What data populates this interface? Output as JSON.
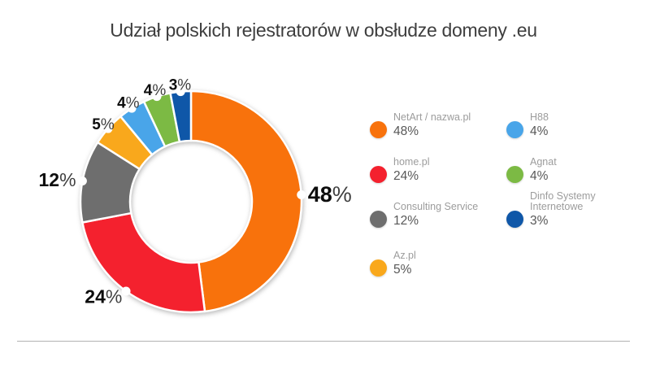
{
  "title": "Udział polskich rejestratorów w obsłudze domeny .eu",
  "chart_data": {
    "type": "pie",
    "donut": true,
    "title": "Udział polskich rejestratorów w obsłudze domeny .eu",
    "unit": "%",
    "legend_position": "right",
    "start_angle_deg": 0,
    "direction": "clockwise",
    "slices": [
      {
        "label": "NetArt / nazwa.pl",
        "value": 48,
        "display": "48%",
        "color": "#F8720C",
        "legend_column": "left"
      },
      {
        "label": "home.pl",
        "value": 24,
        "display": "24%",
        "color": "#F4212E",
        "legend_column": "left"
      },
      {
        "label": "Consulting Service",
        "value": 12,
        "display": "12%",
        "color": "#6E6E6E",
        "legend_column": "left"
      },
      {
        "label": "Az.pl",
        "value": 5,
        "display": "5%",
        "color": "#F9A81C",
        "legend_column": "left"
      },
      {
        "label": "H88",
        "value": 4,
        "display": "4%",
        "color": "#49A5E9",
        "legend_column": "right"
      },
      {
        "label": "Agnat",
        "value": 4,
        "display": "4%",
        "color": "#7CBA44",
        "legend_column": "right"
      },
      {
        "label": "Dinfo Systemy Internetowe",
        "value": 3,
        "display": "3%",
        "color": "#0F57A8",
        "legend_column": "right"
      }
    ],
    "slice_label_colors": {
      "number": "#0d0d0d",
      "percent_sign": "#3f3f3f"
    }
  }
}
